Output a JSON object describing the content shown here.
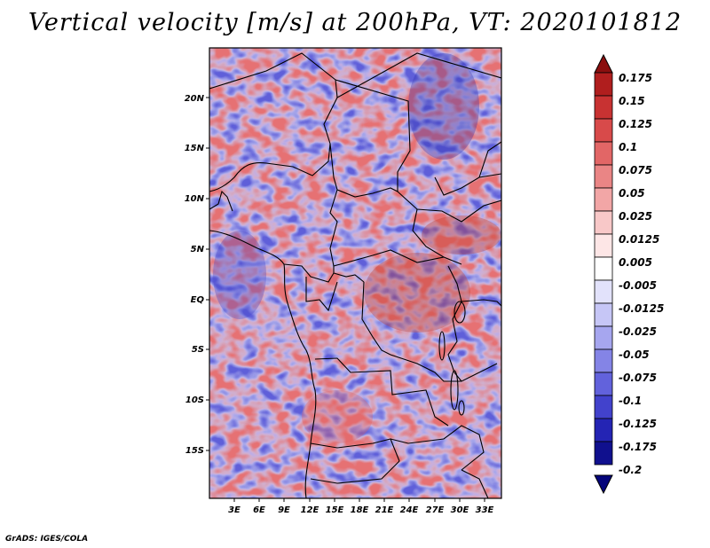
{
  "title": "Vertical velocity [m/s] at 200hPa, VT: 2020101812",
  "footer": "GrADS: IGES/COLA",
  "map": {
    "lat_labels": [
      "20N",
      "15N",
      "10N",
      "5N",
      "EQ",
      "5S",
      "10S",
      "15S"
    ],
    "lon_labels": [
      "3E",
      "6E",
      "9E",
      "12E",
      "15E",
      "18E",
      "21E",
      "24E",
      "27E",
      "30E",
      "33E"
    ],
    "lat_range": [
      -20,
      24.5
    ],
    "lon_range": [
      0,
      35
    ]
  },
  "colorbar": {
    "labels": [
      "0.175",
      "0.15",
      "0.125",
      "0.1",
      "0.075",
      "0.05",
      "0.025",
      "0.0125",
      "0.005",
      "-0.005",
      "-0.0125",
      "-0.025",
      "-0.05",
      "-0.075",
      "-0.1",
      "-0.125",
      "-0.175",
      "-0.2"
    ],
    "colors": [
      "#8b0f0f",
      "#b01e1e",
      "#c83232",
      "#d84a4a",
      "#e26666",
      "#ea8585",
      "#f2a6a6",
      "#f8c8c8",
      "#fde6e6",
      "#ffffff",
      "#e2e2fb",
      "#c6c6f6",
      "#a6a6ef",
      "#8484e6",
      "#6262dc",
      "#4242cc",
      "#2424b4",
      "#10108e",
      "#05057a"
    ]
  }
}
